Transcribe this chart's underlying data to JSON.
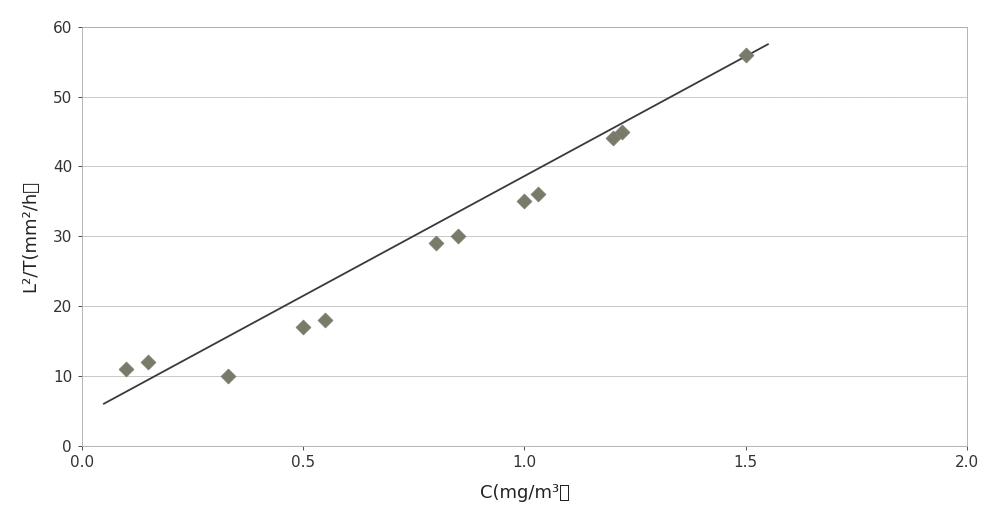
{
  "x_data": [
    0.1,
    0.15,
    0.33,
    0.5,
    0.55,
    0.8,
    0.85,
    1.0,
    1.03,
    1.2,
    1.22,
    1.5
  ],
  "y_data": [
    11,
    12,
    10,
    17,
    18,
    29,
    30,
    35,
    36,
    44,
    45,
    56
  ],
  "line_x": [
    0.05,
    1.55
  ],
  "line_y": [
    6.0,
    57.5
  ],
  "xlabel": "C(mg/m³）",
  "ylabel": "L²/T(mm²/h）",
  "xlim": [
    0,
    2
  ],
  "ylim": [
    0,
    60
  ],
  "xticks": [
    0,
    0.5,
    1.0,
    1.5,
    2
  ],
  "yticks": [
    0,
    10,
    20,
    30,
    40,
    50,
    60
  ],
  "marker_color": "#7a7a6a",
  "line_color": "#3a3a3a",
  "grid_color_solid": "#c0c0c0",
  "grid_color_dotted": "#d0d0d0",
  "background_color": "#ffffff",
  "figure_background": "#ffffff",
  "marker_size": 8,
  "marker_style": "D",
  "border_color": "#aaaaaa"
}
